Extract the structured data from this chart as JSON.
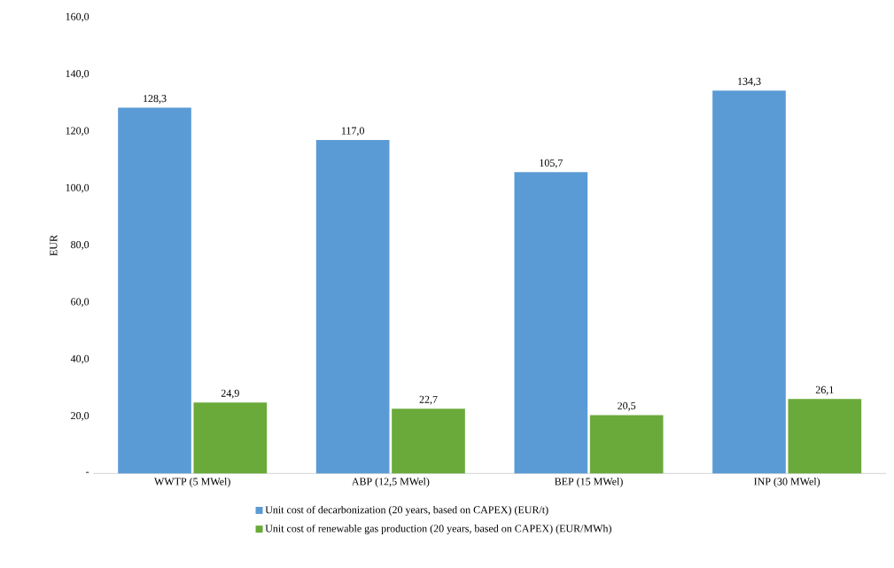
{
  "chart_data": {
    "type": "bar",
    "ylabel": "EUR",
    "categories": [
      "WWTP (5 MWel)",
      "ABP (12,5 MWel)",
      "BEP (15 MWel)",
      "INP (30 MWel)"
    ],
    "series": [
      {
        "name": "Unit cost of decarbonization (20 years, based on CAPEX) (EUR/t)",
        "color": "#5b9bd5",
        "values": [
          128.3,
          117.0,
          105.7,
          134.3
        ],
        "value_labels": [
          "128,3",
          "117,0",
          "105,7",
          "134,3"
        ]
      },
      {
        "name": "Unit cost of renewable gas production (20 years, based on CAPEX) (EUR/MWh)",
        "color": "#6aaa3a",
        "values": [
          24.9,
          22.7,
          20.5,
          26.1
        ],
        "value_labels": [
          "24,9",
          "22,7",
          "20,5",
          "26,1"
        ]
      }
    ],
    "ylim": [
      0,
      160
    ],
    "yticks": [
      {
        "value": 0,
        "label": "-"
      },
      {
        "value": 20,
        "label": "20,0"
      },
      {
        "value": 40,
        "label": "40,0"
      },
      {
        "value": 60,
        "label": "60,0"
      },
      {
        "value": 80,
        "label": "80,0"
      },
      {
        "value": 100,
        "label": "100,0"
      },
      {
        "value": 120,
        "label": "120,0"
      },
      {
        "value": 140,
        "label": "140,0"
      },
      {
        "value": 160,
        "label": "160,0"
      }
    ],
    "grid": false,
    "legend": "bottom"
  }
}
